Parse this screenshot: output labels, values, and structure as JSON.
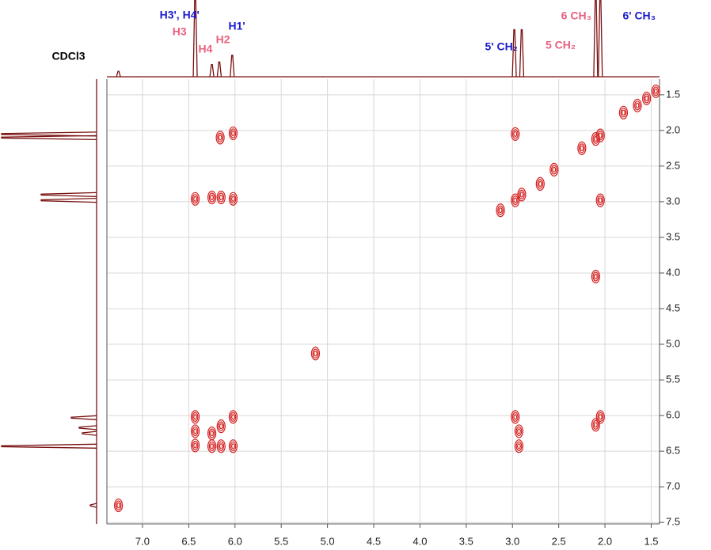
{
  "chart_data": {
    "type": "scatter",
    "xlim": [
      7.385,
      1.41
    ],
    "ylim": [
      1.28,
      7.52
    ],
    "xticks": [
      {
        "value": 7,
        "label": "7.0"
      },
      {
        "value": 6.5,
        "label": "6.5"
      },
      {
        "value": 6,
        "label": "6.0"
      },
      {
        "value": 5.5,
        "label": "5.5"
      },
      {
        "value": 5,
        "label": "5.0"
      },
      {
        "value": 4.5,
        "label": "4.5"
      },
      {
        "value": 4,
        "label": "4.0"
      },
      {
        "value": 3.5,
        "label": "3.5"
      },
      {
        "value": 3,
        "label": "3.0"
      },
      {
        "value": 2.5,
        "label": "2.5"
      },
      {
        "value": 2,
        "label": "2.0"
      },
      {
        "value": 1.5,
        "label": "1.5"
      }
    ],
    "yticks": [
      {
        "value": 1.5,
        "label": "1.5"
      },
      {
        "value": 2,
        "label": "2.0"
      },
      {
        "value": 2.5,
        "label": "2.5"
      },
      {
        "value": 3,
        "label": "3.0"
      },
      {
        "value": 3.5,
        "label": "3.5"
      },
      {
        "value": 4,
        "label": "4.0"
      },
      {
        "value": 4.5,
        "label": "4.5"
      },
      {
        "value": 5,
        "label": "5.0"
      },
      {
        "value": 5.5,
        "label": "5.5"
      },
      {
        "value": 6,
        "label": "6.0"
      },
      {
        "value": 6.5,
        "label": "6.5"
      },
      {
        "value": 7,
        "label": "7.0"
      },
      {
        "value": 7.5,
        "label": "7.5"
      }
    ],
    "grid": true,
    "color": "#d42020",
    "series": [
      {
        "x": [
          6.16,
          6.02,
          6.43,
          6.25,
          6.15,
          6.02,
          6.43,
          6.43,
          6.43,
          6.25,
          6.25,
          6.15,
          6.15,
          6.02,
          6.02,
          2.97,
          2.97,
          2.9,
          3.13,
          2.7,
          2.55,
          2.05,
          2.1,
          2.05,
          2.25,
          1.8,
          1.65,
          1.55,
          1.45,
          2.97,
          2.93,
          2.93,
          2.1,
          2.05,
          2.1,
          5.13,
          7.26
        ],
        "values": [
          2.1,
          2.04,
          2.96,
          2.94,
          2.94,
          2.96,
          6.02,
          6.22,
          6.42,
          6.25,
          6.43,
          6.15,
          6.43,
          6.02,
          6.43,
          2.05,
          2.98,
          2.9,
          3.12,
          2.75,
          2.55,
          2.98,
          2.12,
          2.07,
          2.25,
          1.75,
          1.65,
          1.55,
          1.45,
          6.02,
          6.22,
          6.43,
          6.13,
          6.02,
          4.05,
          5.13,
          7.26
        ]
      }
    ],
    "projection": {
      "color": "#7a1010",
      "shifts": [
        7.26,
        6.43,
        6.25,
        6.17,
        6.03,
        2.98,
        2.9,
        2.1,
        2.05
      ],
      "intensities": [
        8,
        120,
        18,
        22,
        32,
        70,
        70,
        120,
        120
      ]
    },
    "annotations": [
      {
        "text": "CDCl3",
        "x": 7.8,
        "y": 72,
        "color": "#000000"
      },
      {
        "text": "H3', H4'",
        "x": 6.6,
        "y": 20,
        "color": "#1a1acc"
      },
      {
        "text": "H3",
        "x": 6.6,
        "y": 41,
        "color": "#e8607f"
      },
      {
        "text": "H4",
        "x": 6.32,
        "y": 63,
        "color": "#e8607f"
      },
      {
        "text": "H2",
        "x": 6.13,
        "y": 51,
        "color": "#e8607f"
      },
      {
        "text": "H1'",
        "x": 5.98,
        "y": 34,
        "color": "#1a1acc"
      },
      {
        "text": "5' CH₂",
        "x": 3.12,
        "y": 60,
        "color": "#1a1acc"
      },
      {
        "text": "5 CH₂",
        "x": 2.48,
        "y": 58,
        "color": "#e8607f"
      },
      {
        "text": "6 CH₃",
        "x": 2.31,
        "y": 21,
        "color": "#e8607f"
      },
      {
        "text": "6' CH₃",
        "x": 1.63,
        "y": 21,
        "color": "#1a1acc"
      }
    ]
  }
}
